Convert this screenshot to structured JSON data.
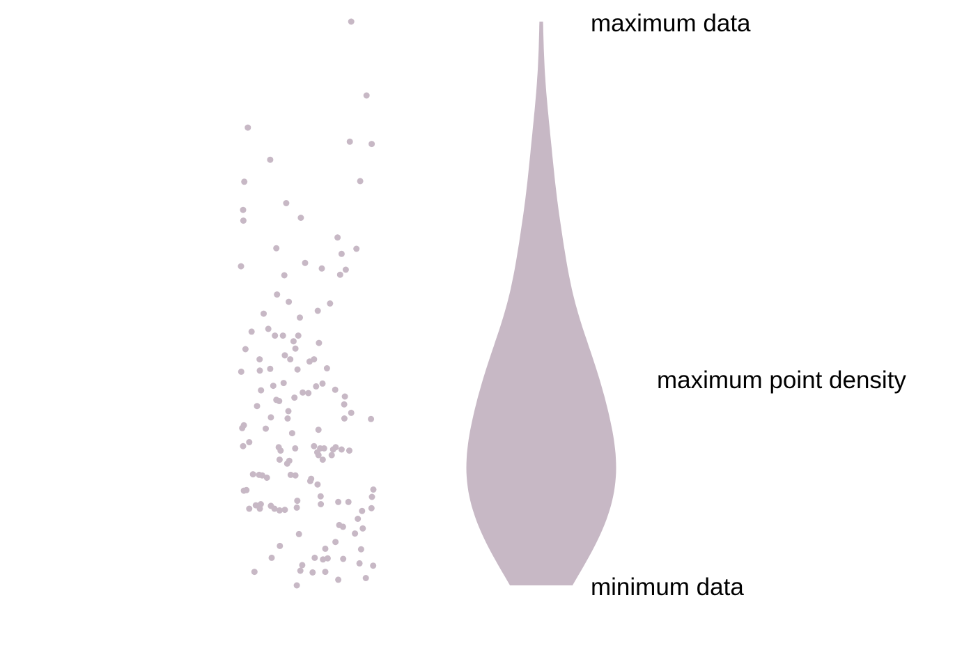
{
  "chart_data": {
    "type": "scatter",
    "description_free": true,
    "fill_color": "#c7b8c5",
    "y_range": [
      0,
      100
    ],
    "grid": false,
    "axes_visible": false,
    "points": [
      [
        86.8,
        100.0
      ],
      [
        93.3,
        86.9
      ],
      [
        42.9,
        81.2
      ],
      [
        86.2,
        78.7
      ],
      [
        95.5,
        78.3
      ],
      [
        52.4,
        75.5
      ],
      [
        90.6,
        71.7
      ],
      [
        59.2,
        67.8
      ],
      [
        65.4,
        65.2
      ],
      [
        55.0,
        59.8
      ],
      [
        89.0,
        59.7
      ],
      [
        82.7,
        58.8
      ],
      [
        81.0,
        61.7
      ],
      [
        67.2,
        57.2
      ],
      [
        74.3,
        56.2
      ],
      [
        82.1,
        55.1
      ],
      [
        58.4,
        55.0
      ],
      [
        84.5,
        56.0
      ],
      [
        40.0,
        56.6
      ],
      [
        55.3,
        51.6
      ],
      [
        60.3,
        50.3
      ],
      [
        77.8,
        50.0
      ],
      [
        72.6,
        48.7
      ],
      [
        49.6,
        48.2
      ],
      [
        65.0,
        47.5
      ],
      [
        51.6,
        45.5
      ],
      [
        44.5,
        45.0
      ],
      [
        54.4,
        44.3
      ],
      [
        57.8,
        44.3
      ],
      [
        62.3,
        43.3
      ],
      [
        64.3,
        44.3
      ],
      [
        73.1,
        43.0
      ],
      [
        63.1,
        42.0
      ],
      [
        41.9,
        41.9
      ],
      [
        58.6,
        40.8
      ],
      [
        71.0,
        40.1
      ],
      [
        60.9,
        40.1
      ],
      [
        47.9,
        40.1
      ],
      [
        64.0,
        38.3
      ],
      [
        52.4,
        38.4
      ],
      [
        69.1,
        39.7
      ],
      [
        48.0,
        38.1
      ],
      [
        76.5,
        38.5
      ],
      [
        58.1,
        35.9
      ],
      [
        53.7,
        35.4
      ],
      [
        71.9,
        35.3
      ],
      [
        74.6,
        35.8
      ],
      [
        80.0,
        34.7
      ],
      [
        62.7,
        33.3
      ],
      [
        48.5,
        34.6
      ],
      [
        66.2,
        34.2
      ],
      [
        68.6,
        34.1
      ],
      [
        55.0,
        32.9
      ],
      [
        56.2,
        32.7
      ],
      [
        84.1,
        33.5
      ],
      [
        46.8,
        31.8
      ],
      [
        60.1,
        30.9
      ],
      [
        52.7,
        29.8
      ],
      [
        59.8,
        29.6
      ],
      [
        50.5,
        27.8
      ],
      [
        61.7,
        27.0
      ],
      [
        72.9,
        27.6
      ],
      [
        41.2,
        28.4
      ],
      [
        40.5,
        27.9
      ],
      [
        86.8,
        30.6
      ],
      [
        83.8,
        32.1
      ],
      [
        83.9,
        29.6
      ],
      [
        95.2,
        29.5
      ],
      [
        43.5,
        25.4
      ],
      [
        40.9,
        24.7
      ],
      [
        63.0,
        24.3
      ],
      [
        56.8,
        23.9
      ],
      [
        56.0,
        24.5
      ],
      [
        71.0,
        24.7
      ],
      [
        73.6,
        24.3
      ],
      [
        75.3,
        24.3
      ],
      [
        79.1,
        24.1
      ],
      [
        80.2,
        24.5
      ],
      [
        82.7,
        24.1
      ],
      [
        72.4,
        23.6
      ],
      [
        72.9,
        23.1
      ],
      [
        78.5,
        23.1
      ],
      [
        56.4,
        22.3
      ],
      [
        60.5,
        22.1
      ],
      [
        74.7,
        22.3
      ],
      [
        86.0,
        23.9
      ],
      [
        45.1,
        19.7
      ],
      [
        47.7,
        19.6
      ],
      [
        49.0,
        19.5
      ],
      [
        51.0,
        19.1
      ],
      [
        59.6,
        21.6
      ],
      [
        61.1,
        19.6
      ],
      [
        63.1,
        19.5
      ],
      [
        69.4,
        18.5
      ],
      [
        69.8,
        18.9
      ],
      [
        72.5,
        17.9
      ],
      [
        41.2,
        16.8
      ],
      [
        96.2,
        17.0
      ],
      [
        73.8,
        15.8
      ],
      [
        63.9,
        15.0
      ],
      [
        81.3,
        14.8
      ],
      [
        73.9,
        14.4
      ],
      [
        85.6,
        14.8
      ],
      [
        43.5,
        13.6
      ],
      [
        95.6,
        15.7
      ],
      [
        46.3,
        14.2
      ],
      [
        48.0,
        13.6
      ],
      [
        48.4,
        14.4
      ],
      [
        52.7,
        14.1
      ],
      [
        54.2,
        13.6
      ],
      [
        56.4,
        13.3
      ],
      [
        58.6,
        13.4
      ],
      [
        63.7,
        13.8
      ],
      [
        91.4,
        13.2
      ],
      [
        95.4,
        13.7
      ],
      [
        91.7,
        10.1
      ],
      [
        83.3,
        10.4
      ],
      [
        81.7,
        10.7
      ],
      [
        89.6,
        11.8
      ],
      [
        88.4,
        9.2
      ],
      [
        64.6,
        9.1
      ],
      [
        56.5,
        7.0
      ],
      [
        75.8,
        6.5
      ],
      [
        91.0,
        6.4
      ],
      [
        76.8,
        4.8
      ],
      [
        83.4,
        4.7
      ],
      [
        74.8,
        4.6
      ],
      [
        71.3,
        4.9
      ],
      [
        90.3,
        3.9
      ],
      [
        53.0,
        4.9
      ],
      [
        96.1,
        3.5
      ],
      [
        70.4,
        2.3
      ],
      [
        75.8,
        2.4
      ],
      [
        45.7,
        2.4
      ],
      [
        93.0,
        1.3
      ],
      [
        63.7,
        0.0
      ],
      [
        81.3,
        1.0
      ],
      [
        66.0,
        3.6
      ],
      [
        65.2,
        2.6
      ],
      [
        80.1,
        7.7
      ],
      [
        42.3,
        16.9
      ],
      [
        40.1,
        37.9
      ],
      [
        41.4,
        71.6
      ],
      [
        40.9,
        66.6
      ],
      [
        41.0,
        64.7
      ]
    ],
    "annotations": {
      "top": "maximum data",
      "middle": "maximum point density",
      "bottom": "minimum data"
    }
  }
}
